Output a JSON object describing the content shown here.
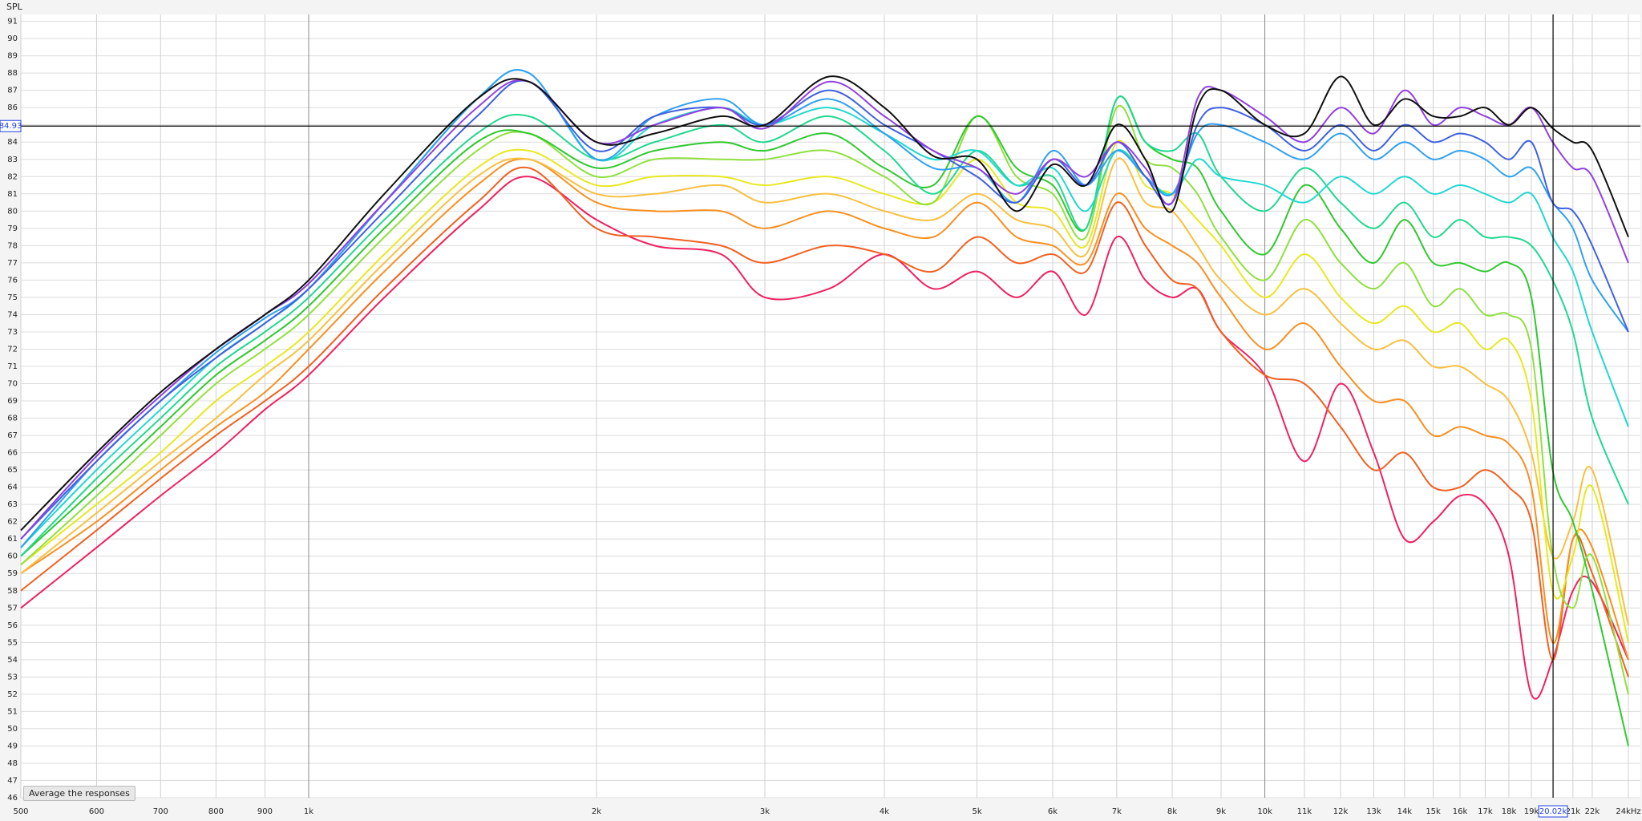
{
  "chart_data": {
    "type": "line",
    "ylabel": "SPL",
    "log_x": true,
    "grid": true,
    "xlim": [
      500,
      24000
    ],
    "ylim": [
      46,
      91.4
    ],
    "xticks": [
      {
        "value": 500,
        "label": "500"
      },
      {
        "value": 600,
        "label": "600"
      },
      {
        "value": 700,
        "label": "700"
      },
      {
        "value": 800,
        "label": "800"
      },
      {
        "value": 900,
        "label": "900"
      },
      {
        "value": 1000,
        "label": "1k"
      },
      {
        "value": 2000,
        "label": "2k"
      },
      {
        "value": 3000,
        "label": "3k"
      },
      {
        "value": 4000,
        "label": "4k"
      },
      {
        "value": 5000,
        "label": "5k"
      },
      {
        "value": 6000,
        "label": "6k"
      },
      {
        "value": 7000,
        "label": "7k"
      },
      {
        "value": 8000,
        "label": "8k"
      },
      {
        "value": 9000,
        "label": "9k"
      },
      {
        "value": 10000,
        "label": "10k"
      },
      {
        "value": 11000,
        "label": "11k"
      },
      {
        "value": 12000,
        "label": "12k"
      },
      {
        "value": 13000,
        "label": "13k"
      },
      {
        "value": 14000,
        "label": "14k"
      },
      {
        "value": 15000,
        "label": "15k"
      },
      {
        "value": 16000,
        "label": "16k"
      },
      {
        "value": 17000,
        "label": "17k"
      },
      {
        "value": 18000,
        "label": "18k"
      },
      {
        "value": 19000,
        "label": "19k"
      },
      {
        "value": 21000,
        "label": "21k"
      },
      {
        "value": 22000,
        "label": "22k"
      },
      {
        "value": 24000,
        "label": "24kHz"
      }
    ],
    "yticks": [
      46,
      47,
      48,
      49,
      50,
      51,
      52,
      53,
      54,
      55,
      56,
      57,
      58,
      59,
      60,
      61,
      62,
      63,
      64,
      65,
      66,
      67,
      68,
      69,
      70,
      71,
      72,
      73,
      74,
      75,
      76,
      77,
      78,
      79,
      80,
      81,
      82,
      83,
      84,
      85,
      86,
      87,
      88,
      89,
      90,
      91
    ],
    "cursor": {
      "x": {
        "value": 20020,
        "label": "20.02k"
      },
      "y": 84.93
    },
    "button": "Average the responses",
    "x": [
      500,
      600,
      700,
      800,
      900,
      1000,
      1200,
      1500,
      1700,
      2000,
      2300,
      2700,
      3000,
      3500,
      4000,
      4500,
      5000,
      5500,
      6000,
      6500,
      7000,
      7500,
      8000,
      8500,
      9000,
      10000,
      11000,
      12000,
      13000,
      14000,
      15000,
      16000,
      17000,
      18000,
      19000,
      20000,
      21000,
      22000,
      24000
    ],
    "series": [
      {
        "color": "#f02060",
        "values": [
          57,
          60.5,
          63.5,
          66,
          68.5,
          70.5,
          75,
          80,
          82,
          79.5,
          78,
          77.5,
          75,
          75.5,
          77.5,
          75.5,
          76.5,
          75,
          76.5,
          74,
          78.5,
          76,
          75,
          75.5,
          73,
          70.5,
          65.5,
          70,
          66,
          61,
          62,
          63.5,
          63,
          60,
          52,
          54,
          58,
          58.5,
          54
        ]
      },
      {
        "color": "#f06020",
        "values": [
          58,
          61.5,
          64.5,
          67,
          69,
          71,
          75.5,
          80.5,
          82.5,
          79,
          78.5,
          78,
          77,
          78,
          77.5,
          76.5,
          78.5,
          77,
          77.5,
          76.5,
          80.5,
          78,
          76,
          75.5,
          73,
          70.5,
          70,
          67.5,
          65,
          66,
          64,
          64,
          65,
          64,
          62,
          54,
          61,
          59,
          53
        ]
      },
      {
        "color": "#f89020",
        "values": [
          59,
          62,
          65,
          67.5,
          69.5,
          72,
          76.5,
          81.5,
          83,
          80.5,
          80,
          80,
          79,
          80,
          79,
          78.5,
          80.5,
          78.5,
          78,
          77,
          81,
          79,
          78,
          77,
          75,
          72,
          73.5,
          71,
          69,
          69,
          67,
          67.5,
          67,
          66.5,
          64,
          55,
          61,
          60.5,
          54
        ]
      },
      {
        "color": "#f8c040",
        "values": [
          59,
          62.5,
          65.5,
          68,
          70.5,
          72.5,
          77,
          82,
          83,
          81,
          81,
          81.5,
          80.5,
          81,
          80,
          79.5,
          81,
          79.5,
          79,
          77.5,
          83,
          80.5,
          80,
          78,
          76,
          74,
          75.5,
          73.5,
          72,
          72.5,
          71,
          71,
          70,
          69,
          66,
          60,
          62,
          65,
          56
        ]
      },
      {
        "color": "#e8e820",
        "values": [
          59.5,
          63,
          66,
          69,
          71,
          73,
          77.5,
          82.5,
          83.5,
          81.5,
          82,
          82,
          81.5,
          82,
          81,
          80.5,
          83,
          80.5,
          80,
          78,
          84,
          81.5,
          81,
          79.5,
          78,
          75,
          77.5,
          75,
          73.5,
          74.5,
          73,
          73.5,
          72,
          72.5,
          69,
          58,
          60,
          64,
          55
        ]
      },
      {
        "color": "#90e040",
        "values": [
          59.5,
          63.5,
          67,
          70,
          72,
          74,
          78.5,
          83.5,
          84.5,
          82,
          83,
          83,
          83,
          83.5,
          82,
          80.5,
          85.5,
          82,
          81,
          78.5,
          86,
          83,
          82.5,
          81,
          78.5,
          76,
          79.5,
          77,
          75.5,
          77,
          74.5,
          75.5,
          74,
          74,
          72,
          60,
          57,
          60,
          52
        ]
      },
      {
        "color": "#30c830",
        "values": [
          60,
          64,
          67.5,
          70.5,
          72.5,
          74.5,
          79,
          84,
          84.5,
          82.5,
          83.5,
          84,
          83.5,
          84.5,
          82.5,
          81.5,
          85.5,
          82.5,
          81.5,
          79,
          86.5,
          84,
          83,
          82.5,
          80,
          77.5,
          81.5,
          79,
          77,
          79.5,
          77,
          77,
          76.5,
          77,
          75,
          65,
          62,
          58,
          49
        ]
      },
      {
        "color": "#20d890",
        "values": [
          60,
          64.5,
          68,
          71,
          73,
          75,
          79.5,
          84.5,
          85.5,
          83,
          84,
          85,
          84,
          85.5,
          83.5,
          81,
          83.5,
          81.5,
          82,
          79,
          86.5,
          84,
          83.5,
          84.5,
          82,
          80,
          82.5,
          80.5,
          79,
          80.5,
          78.5,
          79.5,
          78.5,
          78.5,
          78,
          76,
          73,
          68,
          63
        ]
      },
      {
        "color": "#20d8d0",
        "values": [
          60.5,
          65,
          68.5,
          71.5,
          73.5,
          75.5,
          80.5,
          86.5,
          88,
          83,
          85,
          86,
          85,
          86,
          84.5,
          83,
          83.5,
          81.5,
          82.5,
          80,
          83.5,
          82,
          81,
          83,
          82,
          81.5,
          80.5,
          82,
          81,
          82,
          81,
          81.5,
          81,
          80.5,
          81,
          78.5,
          76.5,
          73,
          67.5
        ]
      },
      {
        "color": "#30a0f0",
        "values": [
          60.5,
          65.5,
          69,
          71.8,
          73.8,
          75.5,
          80.5,
          86.5,
          88,
          83,
          85.5,
          86.5,
          85,
          86.5,
          84.5,
          82.5,
          82.5,
          80.5,
          83.5,
          81.5,
          83.5,
          82,
          81,
          84.5,
          85,
          84,
          83,
          84.5,
          83,
          84,
          83,
          83.5,
          83,
          82,
          82.5,
          80.5,
          79,
          76,
          73
        ]
      },
      {
        "color": "#4060e0",
        "values": [
          61,
          65.5,
          69,
          71.5,
          73.5,
          75.5,
          80,
          85.5,
          87.5,
          83.5,
          85.5,
          86,
          85,
          87,
          85,
          83.5,
          82,
          80.5,
          83,
          81.5,
          84,
          82,
          80.5,
          85,
          86,
          85,
          83.5,
          85,
          83.5,
          85,
          84,
          84.5,
          84,
          83,
          84,
          80.5,
          80,
          78,
          73
        ]
      },
      {
        "color": "#9040e0",
        "values": [
          61,
          65.8,
          69.3,
          72,
          74,
          75.8,
          80.5,
          86,
          87.5,
          84,
          85,
          86,
          84.8,
          87.5,
          85.5,
          83.5,
          82.5,
          81,
          83,
          82,
          84,
          82.5,
          80.5,
          86.5,
          87,
          85.5,
          84,
          86,
          84.5,
          87,
          85,
          86,
          85.5,
          85,
          86,
          84,
          82.5,
          82,
          77
        ]
      },
      {
        "color": "#101010",
        "values": [
          61.5,
          66,
          69.5,
          72,
          74,
          76,
          81,
          86.5,
          87.5,
          84,
          84.5,
          85.5,
          85,
          87.8,
          86,
          83.2,
          83,
          80,
          82.7,
          81.5,
          85,
          83,
          80,
          86,
          87,
          85,
          84.5,
          87.8,
          85,
          86.5,
          85.5,
          85.5,
          86,
          85,
          86,
          84.8,
          84,
          83.5,
          78.5
        ]
      }
    ]
  }
}
